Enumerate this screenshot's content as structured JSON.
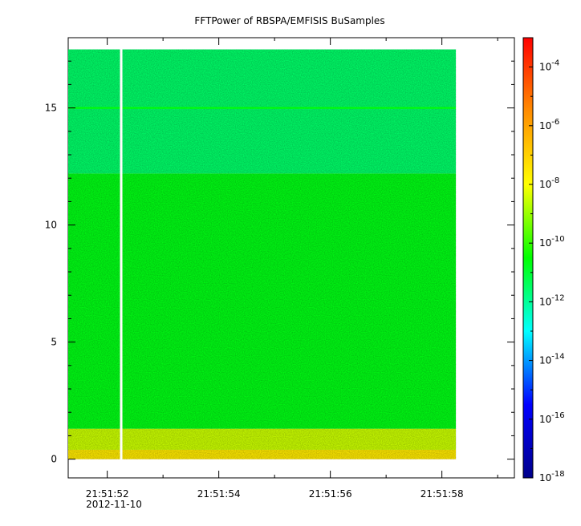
{
  "chart_data": {
    "type": "heatmap",
    "title": "FFTPower of RBSPA/EMFISIS  BuSamples",
    "xlabel": "",
    "ylabel": "",
    "x_tick_labels": [
      "21:51:52",
      "21:51:54",
      "21:51:56",
      "21:51:58"
    ],
    "x_date_label": "2012-11-10",
    "x_range_seconds": [
      51.3,
      59.3
    ],
    "x_data_extent_seconds": [
      51.3,
      58.25
    ],
    "x_gap_seconds": 52.25,
    "y_ticks": [
      0,
      5,
      10,
      15
    ],
    "y_range": [
      -0.8,
      18.0
    ],
    "y_data_extent": [
      0.0,
      17.5
    ],
    "colorbar": {
      "scale": "log",
      "range": [
        1e-18,
        0.001
      ],
      "tick_exponents": [
        -4,
        -6,
        -8,
        -10,
        -12,
        -14,
        -16,
        -18
      ],
      "tick_base": "10",
      "colors": [
        "#00008b",
        "#0000ff",
        "#00ffff",
        "#00ff00",
        "#ffff00",
        "#ff8c00",
        "#ff0000"
      ]
    },
    "bands": [
      {
        "y_from": 0.0,
        "y_to": 0.4,
        "power": 3e-08
      },
      {
        "y_from": 0.4,
        "y_to": 1.3,
        "power": 3e-09
      },
      {
        "y_from": 1.3,
        "y_to": 12.2,
        "power": 2e-11
      },
      {
        "y_from": 12.2,
        "y_to": 17.5,
        "power": 3e-12
      }
    ],
    "lines": [
      {
        "y": 15.0,
        "power": 3e-11
      }
    ],
    "grid": false,
    "legend": "none"
  }
}
